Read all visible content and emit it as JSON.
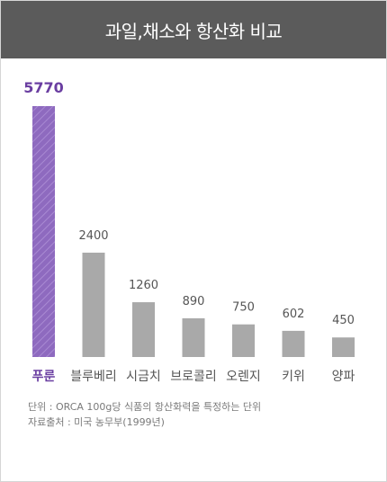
{
  "title": "과일,채소와 항산화 비교",
  "colors": {
    "header_bg": "#5b5b5b",
    "bar": "#a9a9a9",
    "highlight": "#8e6abf",
    "highlight_text": "#6a3ea1",
    "text": "#555555"
  },
  "chart_data": {
    "type": "bar",
    "title": "과일,채소와 항산화 비교",
    "categories": [
      "푸룬",
      "블루베리",
      "시금치",
      "브로콜리",
      "오렌지",
      "키위",
      "양파"
    ],
    "values": [
      5770,
      2400,
      1260,
      890,
      750,
      602,
      450
    ],
    "value_labels": [
      "5770",
      "2400",
      "1260",
      "890",
      "750",
      "602",
      "450"
    ],
    "highlight_index": 0,
    "xlabel": "",
    "ylabel": "",
    "ylim": [
      0,
      5770
    ],
    "grid": false,
    "legend": "none"
  },
  "notes": {
    "unit": "단위 : ORCA 100g당 식품의 항산화력을 특정하는 단위",
    "source": "자료출처 : 미국 농무부(1999년)"
  }
}
